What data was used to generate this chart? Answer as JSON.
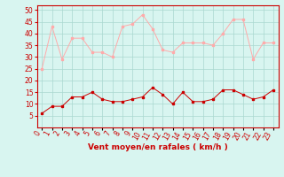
{
  "hours": [
    0,
    1,
    2,
    3,
    4,
    5,
    6,
    7,
    8,
    9,
    10,
    11,
    12,
    13,
    14,
    15,
    16,
    17,
    18,
    19,
    20,
    21,
    22,
    23
  ],
  "avg_wind": [
    6,
    9,
    9,
    13,
    13,
    15,
    12,
    11,
    11,
    12,
    13,
    17,
    14,
    10,
    15,
    11,
    11,
    12,
    16,
    16,
    14,
    12,
    13,
    16
  ],
  "gust_wind": [
    25,
    43,
    29,
    38,
    38,
    32,
    32,
    30,
    43,
    44,
    48,
    42,
    33,
    32,
    36,
    36,
    36,
    35,
    40,
    46,
    46,
    29,
    36,
    36
  ],
  "avg_color": "#cc0000",
  "gust_color": "#ffaaaa",
  "bg_color": "#d8f5f0",
  "grid_color": "#aad8d0",
  "xlabel": "Vent moyen/en rafales ( km/h )",
  "ylim_min": 0,
  "ylim_max": 52,
  "yticks": [
    5,
    10,
    15,
    20,
    25,
    30,
    35,
    40,
    45,
    50
  ],
  "tick_fontsize": 5.5,
  "xlabel_fontsize": 6.5
}
